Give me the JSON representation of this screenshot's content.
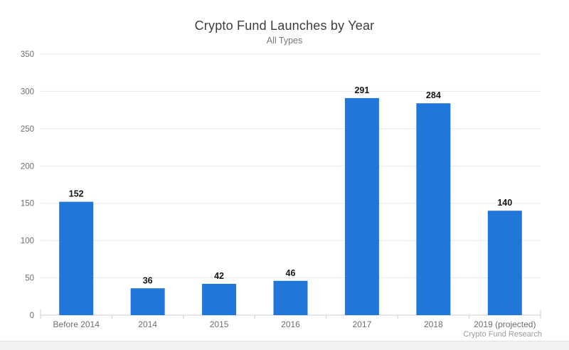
{
  "page": {
    "background": "#ffffff",
    "footer_band_color": "#f1f1f1"
  },
  "header": {
    "title": "Crypto Fund Launches by Year",
    "subtitle": "All Types"
  },
  "attribution": "Crypto Fund Research",
  "chart_data": {
    "type": "bar",
    "title": "Crypto Fund Launches by Year",
    "subtitle": "All Types",
    "categories": [
      "Before 2014",
      "2014",
      "2015",
      "2016",
      "2017",
      "2018",
      "2019 (projected)"
    ],
    "values": [
      152,
      36,
      42,
      46,
      291,
      284,
      140
    ],
    "xlabel": "",
    "ylabel": "",
    "ylim": [
      0,
      350
    ],
    "ytick_interval": 50,
    "yticks": [
      0,
      50,
      100,
      150,
      200,
      250,
      300,
      350
    ],
    "grid": true,
    "legend": "none",
    "data_labels": true,
    "attribution": "Crypto Fund Research",
    "colors": {
      "bar": "#2176d9",
      "grid": "#e8e8e8",
      "axis": "#cccccc",
      "axis_tick_label": "#6e6e6e",
      "value_label": "#151515",
      "title": "#3d3d3d",
      "subtitle": "#787878",
      "attribution": "#9b9b9b"
    }
  }
}
